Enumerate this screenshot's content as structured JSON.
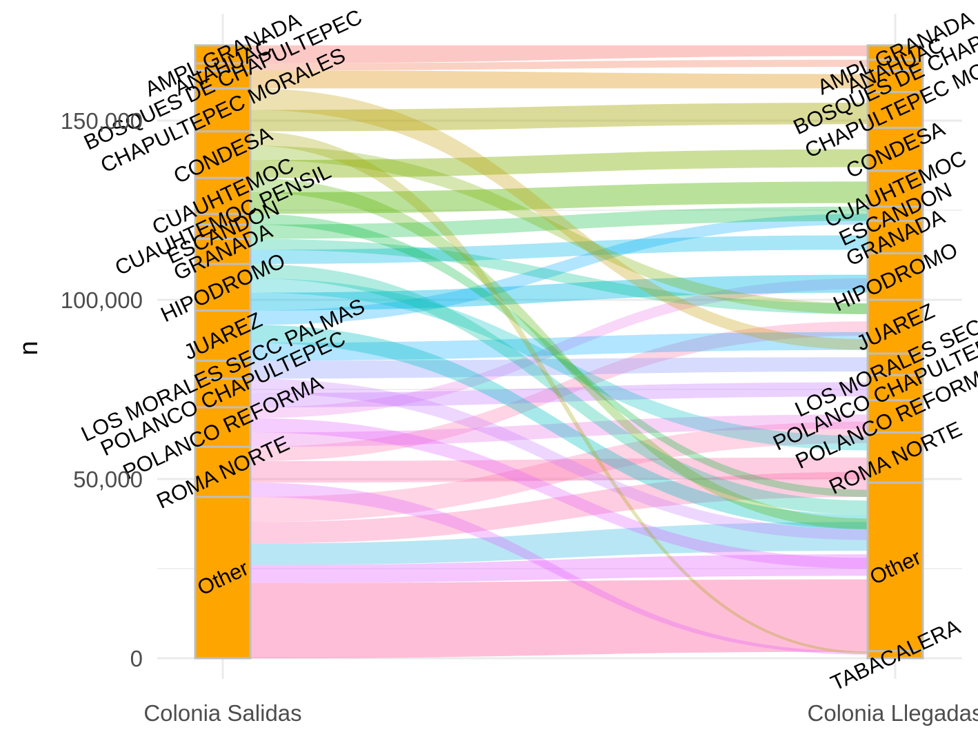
{
  "chart_data": {
    "type": "alluvial",
    "title": "",
    "xlabel": "",
    "ylabel": "n",
    "ylim": [
      0,
      170000
    ],
    "y_ticks": [
      0,
      50000,
      100000,
      150000
    ],
    "y_tick_labels": [
      "0",
      "50,000",
      "100,000",
      "150,000"
    ],
    "axes": [
      "Colonia Salidas",
      "Colonia Llegadas"
    ],
    "grid": true,
    "stratum_fill": "#FFA500",
    "stratum_border": "#BEBEBE",
    "strata_salidas": [
      {
        "label": "Other",
        "from": 0,
        "to": 45000
      },
      {
        "label": "ROMA NORTE",
        "from": 45000,
        "to": 59000
      },
      {
        "label": "POLANCO REFORMA",
        "from": 59000,
        "to": 70000
      },
      {
        "label": "POLANCO CHAPULTEPEC",
        "from": 70000,
        "to": 78000
      },
      {
        "label": "LOS MORALES SECC PALMAS",
        "from": 78000,
        "to": 83000
      },
      {
        "label": "JUAREZ",
        "from": 83000,
        "to": 97000
      },
      {
        "label": "HIPODROMO",
        "from": 97000,
        "to": 110000
      },
      {
        "label": "GRANADA",
        "from": 110000,
        "to": 117000
      },
      {
        "label": "ESCANDON",
        "from": 117000,
        "to": 121000
      },
      {
        "label": "CUAUHTEMOC PENSIL",
        "from": 121000,
        "to": 124000
      },
      {
        "label": "CUAUHTEMOC",
        "from": 124000,
        "to": 134000
      },
      {
        "label": "CONDESA",
        "from": 134000,
        "to": 147000
      },
      {
        "label": "CHAPULTEPEC MORALES",
        "from": 147000,
        "to": 159000
      },
      {
        "label": "BOSQUES DE CHAPULTEPEC",
        "from": 159000,
        "to": 164000
      },
      {
        "label": "ANAHUAC",
        "from": 164000,
        "to": 166000
      },
      {
        "label": "AMPL GRANADA",
        "from": 166000,
        "to": 171000
      }
    ],
    "strata_llegadas": [
      {
        "label": "TABACALERA",
        "from": 0,
        "to": 2000
      },
      {
        "label": "Other",
        "from": 2000,
        "to": 49000
      },
      {
        "label": "ROMA NORTE",
        "from": 49000,
        "to": 63000
      },
      {
        "label": "POLANCO REFORMA",
        "from": 63000,
        "to": 72000
      },
      {
        "label": "POLANCO CHAPULTEPEC",
        "from": 72000,
        "to": 79000
      },
      {
        "label": "LOS MORALES SECC",
        "from": 79000,
        "to": 85000
      },
      {
        "label": "JUAREZ",
        "from": 85000,
        "to": 100000
      },
      {
        "label": "HIPODROMO",
        "from": 100000,
        "to": 113000
      },
      {
        "label": "GRANADA",
        "from": 113000,
        "to": 122000
      },
      {
        "label": "ESCANDON",
        "from": 122000,
        "to": 126000
      },
      {
        "label": "CUAUHTEMOC",
        "from": 126000,
        "to": 136000
      },
      {
        "label": "CONDESA",
        "from": 136000,
        "to": 148000
      },
      {
        "label": "CHAPULTEPEC MO",
        "from": 148000,
        "to": 158000
      },
      {
        "label": "BOSQUES DE CHAPU",
        "from": 158000,
        "to": 164000
      },
      {
        "label": "ANAHUAC",
        "from": 164000,
        "to": 167000
      },
      {
        "label": "AMPL GRANADA",
        "from": 167000,
        "to": 171000
      }
    ],
    "flows": [
      {
        "from": 0,
        "to": 21000,
        "to_from": 1800,
        "to_to": 22000,
        "color": "#FF6FA8",
        "opacity": 0.45
      },
      {
        "from": 21000,
        "to": 26000,
        "to_from": 23000,
        "to_to": 29000,
        "color": "#E25BFF",
        "opacity": 0.35
      },
      {
        "from": 26000,
        "to": 32000,
        "to_from": 30000,
        "to_to": 38000,
        "color": "#33B7E0",
        "opacity": 0.35
      },
      {
        "from": 32000,
        "to": 38000,
        "to_from": 45000,
        "to_to": 52000,
        "color": "#FF6FA8",
        "opacity": 0.35
      },
      {
        "from": 38000,
        "to": 45000,
        "to_from": 60000,
        "to_to": 66000,
        "color": "#FF6FA8",
        "opacity": 0.3
      },
      {
        "from": 45000,
        "to": 49000,
        "to_from": 1000,
        "to_to": 1800,
        "color": "#E25BFF",
        "opacity": 0.3
      },
      {
        "from": 49000,
        "to": 55000,
        "to_from": 50000,
        "to_to": 56000,
        "color": "#FF6FA8",
        "opacity": 0.35
      },
      {
        "from": 55000,
        "to": 59000,
        "to_from": 90000,
        "to_to": 94000,
        "color": "#FF6FA8",
        "opacity": 0.3
      },
      {
        "from": 59000,
        "to": 63000,
        "to_from": 64000,
        "to_to": 68000,
        "color": "#EB7AE8",
        "opacity": 0.35
      },
      {
        "from": 63000,
        "to": 67000,
        "to_from": 25000,
        "to_to": 28000,
        "color": "#E25BFF",
        "opacity": 0.3
      },
      {
        "from": 67000,
        "to": 70000,
        "to_from": 103000,
        "to_to": 106000,
        "color": "#EB7AE8",
        "opacity": 0.3
      },
      {
        "from": 70000,
        "to": 74000,
        "to_from": 73000,
        "to_to": 77000,
        "color": "#C77CFF",
        "opacity": 0.35
      },
      {
        "from": 74000,
        "to": 78000,
        "to_from": 33000,
        "to_to": 36000,
        "color": "#C77CFF",
        "opacity": 0.3
      },
      {
        "from": 78000,
        "to": 83000,
        "to_from": 80000,
        "to_to": 84000,
        "color": "#8C9BFF",
        "opacity": 0.35
      },
      {
        "from": 83000,
        "to": 88000,
        "to_from": 86000,
        "to_to": 91000,
        "color": "#00A9FF",
        "opacity": 0.3
      },
      {
        "from": 88000,
        "to": 93000,
        "to_from": 36000,
        "to_to": 40000,
        "color": "#00BFC4",
        "opacity": 0.35
      },
      {
        "from": 93000,
        "to": 97000,
        "to_from": 121000,
        "to_to": 124000,
        "color": "#00A9FF",
        "opacity": 0.3
      },
      {
        "from": 97000,
        "to": 102000,
        "to_from": 102000,
        "to_to": 107000,
        "color": "#00B8E7",
        "opacity": 0.4
      },
      {
        "from": 102000,
        "to": 106000,
        "to_from": 58000,
        "to_to": 62000,
        "color": "#00BFC4",
        "opacity": 0.3
      },
      {
        "from": 106000,
        "to": 110000,
        "to_from": 40000,
        "to_to": 44000,
        "color": "#00C19A",
        "opacity": 0.3
      },
      {
        "from": 110000,
        "to": 114000,
        "to_from": 114000,
        "to_to": 118000,
        "color": "#00B8E7",
        "opacity": 0.35
      },
      {
        "from": 114000,
        "to": 117000,
        "to_from": 96000,
        "to_to": 99000,
        "color": "#00C08B",
        "opacity": 0.3
      },
      {
        "from": 117000,
        "to": 121000,
        "to_from": 122000,
        "to_to": 126000,
        "color": "#00BA38",
        "opacity": 0.3
      },
      {
        "from": 121000,
        "to": 124000,
        "to_from": 45000,
        "to_to": 47000,
        "color": "#00BA38",
        "opacity": 0.3
      },
      {
        "from": 124000,
        "to": 130000,
        "to_from": 127000,
        "to_to": 133000,
        "color": "#53B400",
        "opacity": 0.4
      },
      {
        "from": 130000,
        "to": 134000,
        "to_from": 36000,
        "to_to": 39000,
        "color": "#53B400",
        "opacity": 0.3
      },
      {
        "from": 134000,
        "to": 139000,
        "to_from": 137000,
        "to_to": 142000,
        "color": "#7CAE00",
        "opacity": 0.4
      },
      {
        "from": 139000,
        "to": 143000,
        "to_from": 96000,
        "to_to": 99000,
        "color": "#7CAE00",
        "opacity": 0.3
      },
      {
        "from": 143000,
        "to": 147000,
        "to_from": 1200,
        "to_to": 1900,
        "color": "#A3A500",
        "opacity": 0.3
      },
      {
        "from": 147000,
        "to": 153000,
        "to_from": 149000,
        "to_to": 155000,
        "color": "#A3A500",
        "opacity": 0.4
      },
      {
        "from": 153000,
        "to": 159000,
        "to_from": 86000,
        "to_to": 89000,
        "color": "#C49A00",
        "opacity": 0.3
      },
      {
        "from": 159000,
        "to": 164000,
        "to_from": 159000,
        "to_to": 163000,
        "color": "#DE8C00",
        "opacity": 0.35
      },
      {
        "from": 164000,
        "to": 166000,
        "to_from": 165000,
        "to_to": 167000,
        "color": "#F37B59",
        "opacity": 0.35
      },
      {
        "from": 166000,
        "to": 171000,
        "to_from": 168000,
        "to_to": 171000,
        "color": "#F8766D",
        "opacity": 0.4
      }
    ]
  }
}
